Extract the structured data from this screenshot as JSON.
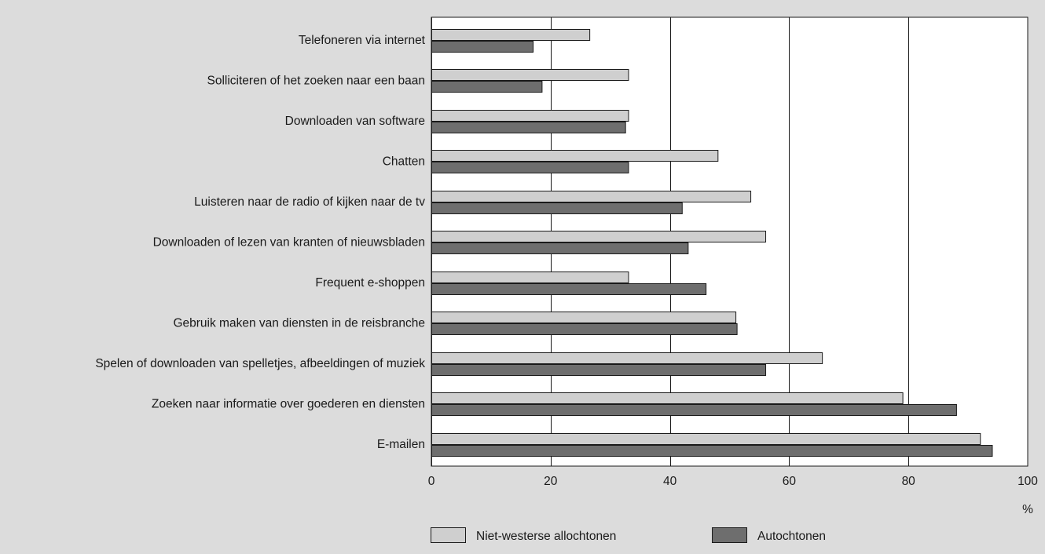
{
  "chart_data": {
    "type": "bar",
    "orientation": "horizontal",
    "title": "",
    "xlabel": "%",
    "ylabel": "",
    "xlim": [
      0,
      100
    ],
    "xticks": [
      0,
      20,
      40,
      60,
      80,
      100
    ],
    "grid": "vertical",
    "legend_position": "bottom",
    "categories": [
      "Telefoneren via internet",
      "Solliciteren of het zoeken naar een baan",
      "Downloaden van software",
      "Chatten",
      "Luisteren naar de radio of kijken naar de tv",
      "Downloaden of lezen van kranten of nieuwsbladen",
      "Frequent e-shoppen",
      "Gebruik maken van diensten in de reisbranche",
      "Spelen of downloaden van spelletjes, afbeeldingen of muziek",
      "Zoeken naar informatie over goederen en diensten",
      "E-mailen"
    ],
    "series": [
      {
        "name": "Niet-westerse allochtonen",
        "color": "#cfcfcf",
        "values": [
          26.5,
          33,
          33,
          48,
          53.5,
          56,
          33,
          51,
          65.5,
          79,
          92
        ]
      },
      {
        "name": "Autochtonen",
        "color": "#6e6e6e",
        "values": [
          17,
          18.5,
          32.5,
          33,
          42,
          43,
          46,
          51.2,
          56,
          88,
          94
        ]
      }
    ]
  },
  "colors": {
    "background": "#dcdcdc",
    "plot_area": "#ffffff",
    "bar_outline": "#1a1a1a",
    "gridline": "#1a1a1a"
  }
}
